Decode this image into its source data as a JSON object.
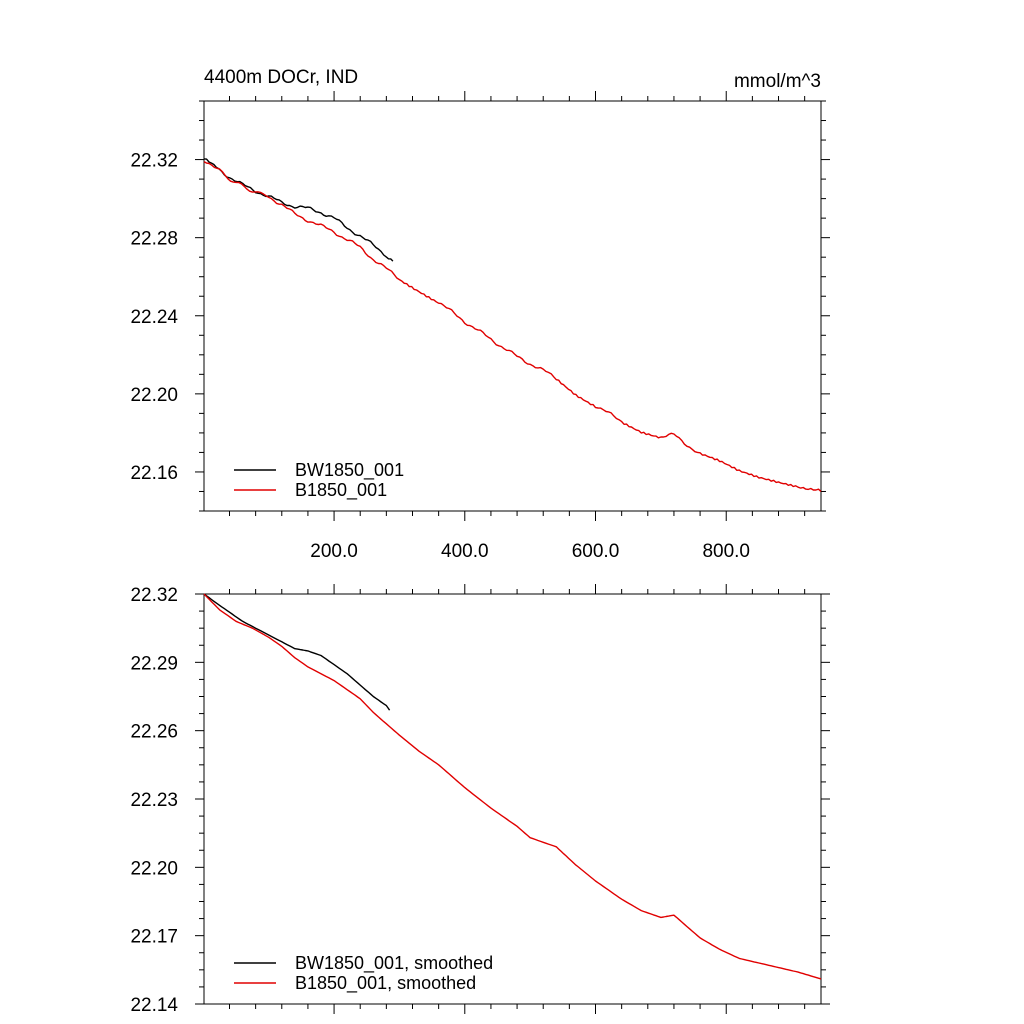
{
  "chart_data": [
    {
      "type": "line",
      "title": "4400m DOCr, IND",
      "units": "mmol/m^3",
      "xlim": [
        1,
        945
      ],
      "ylim": [
        22.14,
        22.35
      ],
      "x_tick_labels": [
        "200.0",
        "400.0",
        "600.0",
        "800.0"
      ],
      "x_ticks": [
        200,
        400,
        600,
        800
      ],
      "y_tick_labels": [
        "22.32",
        "22.28",
        "22.24",
        "22.20",
        "22.16"
      ],
      "y_ticks": [
        22.32,
        22.28,
        22.24,
        22.2,
        22.16
      ],
      "legend_position": "bottom-left",
      "series": [
        {
          "name": "BW1850_001",
          "color": "#000000",
          "x": [
            1,
            20,
            40,
            60,
            80,
            100,
            120,
            140,
            160,
            180,
            200,
            220,
            240,
            260,
            280,
            290
          ],
          "y": [
            22.32,
            22.316,
            22.311,
            22.307,
            22.304,
            22.301,
            22.298,
            22.296,
            22.295,
            22.293,
            22.29,
            22.285,
            22.281,
            22.276,
            22.271,
            22.268
          ]
        },
        {
          "name": "B1850_001",
          "color": "#e00000",
          "x": [
            1,
            25,
            50,
            75,
            100,
            120,
            140,
            160,
            180,
            200,
            220,
            240,
            260,
            280,
            300,
            330,
            360,
            400,
            440,
            480,
            520,
            540,
            570,
            600,
            640,
            670,
            700,
            720,
            740,
            760,
            790,
            820,
            850,
            880,
            910,
            945
          ],
          "y": [
            22.32,
            22.314,
            22.308,
            22.304,
            22.301,
            22.297,
            22.292,
            22.289,
            22.286,
            22.283,
            22.279,
            22.275,
            22.269,
            22.264,
            22.259,
            22.253,
            22.247,
            22.237,
            22.228,
            22.219,
            22.212,
            22.208,
            22.2,
            22.194,
            22.186,
            22.181,
            22.178,
            22.179,
            22.174,
            22.169,
            22.165,
            22.16,
            22.157,
            22.155,
            22.153,
            22.15
          ]
        }
      ]
    },
    {
      "type": "line",
      "xlim": [
        1,
        945
      ],
      "ylim": [
        22.14,
        22.32
      ],
      "y_tick_labels": [
        "22.32",
        "22.29",
        "22.26",
        "22.23",
        "22.20",
        "22.17",
        "22.14"
      ],
      "y_ticks": [
        22.32,
        22.29,
        22.26,
        22.23,
        22.2,
        22.17,
        22.14
      ],
      "x_ticks": [
        200,
        400,
        600,
        800
      ],
      "legend_position": "bottom-left",
      "series": [
        {
          "name": "BW1850_001, smoothed",
          "color": "#000000",
          "x": [
            1,
            20,
            40,
            60,
            80,
            100,
            120,
            140,
            160,
            180,
            200,
            220,
            240,
            260,
            280,
            285
          ],
          "y": [
            22.32,
            22.316,
            22.312,
            22.308,
            22.305,
            22.302,
            22.299,
            22.296,
            22.295,
            22.293,
            22.289,
            22.285,
            22.28,
            22.275,
            22.271,
            22.269
          ]
        },
        {
          "name": "B1850_001, smoothed",
          "color": "#e00000",
          "x": [
            1,
            25,
            50,
            75,
            100,
            120,
            140,
            160,
            180,
            200,
            220,
            240,
            260,
            280,
            300,
            330,
            360,
            400,
            440,
            480,
            500,
            520,
            540,
            570,
            600,
            640,
            670,
            700,
            720,
            740,
            760,
            790,
            820,
            850,
            880,
            910,
            945
          ],
          "y": [
            22.32,
            22.313,
            22.308,
            22.305,
            22.301,
            22.297,
            22.292,
            22.288,
            22.285,
            22.282,
            22.278,
            22.274,
            22.268,
            22.263,
            22.258,
            22.251,
            22.245,
            22.235,
            22.226,
            22.218,
            22.213,
            22.211,
            22.209,
            22.201,
            22.194,
            22.186,
            22.181,
            22.178,
            22.179,
            22.174,
            22.169,
            22.164,
            22.16,
            22.158,
            22.156,
            22.154,
            22.151
          ]
        }
      ]
    }
  ]
}
